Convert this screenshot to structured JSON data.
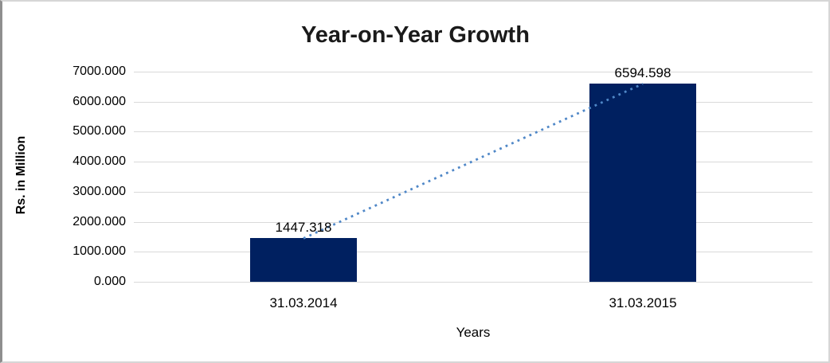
{
  "chart_data": {
    "type": "bar",
    "title": "Year-on-Year Growth",
    "xlabel": "Years",
    "ylabel": "Rs. in Million",
    "categories": [
      "31.03.2014",
      "31.03.2015"
    ],
    "values": [
      1447.318,
      6594.598
    ],
    "value_labels": [
      "1447.318",
      "6594.598"
    ],
    "ylim": [
      0,
      7000
    ],
    "ytick_interval": 1000,
    "ytick_labels": [
      "0.000",
      "1000.000",
      "2000.000",
      "3000.000",
      "4000.000",
      "5000.000",
      "6000.000",
      "7000.000"
    ],
    "grid": true,
    "legend": false,
    "trendline": {
      "style": "dotted",
      "connects": [
        "top of 31.03.2014 bar",
        "top of 31.03.2015 bar"
      ]
    },
    "colors": {
      "bar": "#002060",
      "trendline": "#4f87c7",
      "gridline": "#d9d9d9",
      "text": "#000000",
      "background": "#ffffff"
    }
  }
}
